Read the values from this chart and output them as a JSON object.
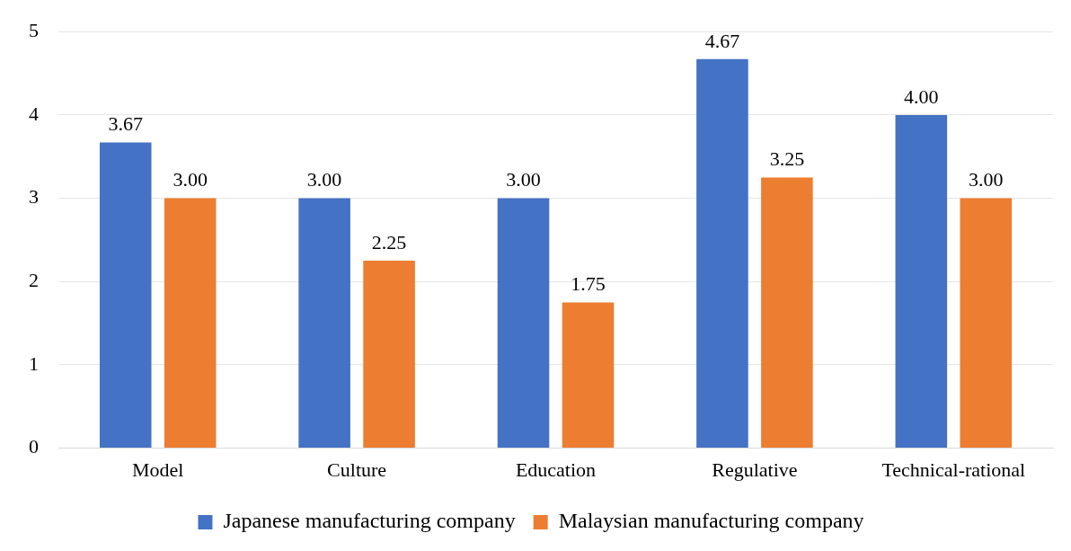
{
  "chart_data": {
    "type": "bar",
    "categories": [
      "Model",
      "Culture",
      "Education",
      "Regulative",
      "Technical-rational"
    ],
    "series": [
      {
        "name": "Japanese manufacturing company",
        "color": "#4472c4",
        "values": [
          3.67,
          3,
          3,
          4.67,
          4
        ],
        "value_labels": [
          "3.67",
          "3.00",
          "3.00",
          "4.67",
          "4.00"
        ]
      },
      {
        "name": "Malaysian manufacturing company",
        "color": "#ed7d31",
        "values": [
          3,
          2.25,
          1.75,
          3.25,
          3
        ],
        "value_labels": [
          "3.00",
          "2.25",
          "1.75",
          "3.25",
          "3.00"
        ]
      }
    ],
    "ylim": [
      0,
      5
    ],
    "yticks": [
      0,
      1,
      2,
      3,
      4,
      5
    ],
    "grid": "y",
    "legend": "bottom"
  }
}
